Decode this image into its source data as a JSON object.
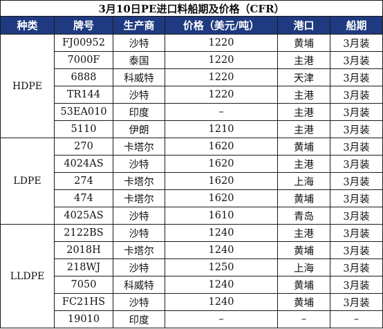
{
  "title": "3月10日PE进口料船期及价格（CFR）",
  "headers": [
    "种类",
    "牌号",
    "生产商",
    "价格（美元/吨）",
    "港口",
    "船期"
  ],
  "groups": [
    {
      "category": "HDPE",
      "rows": [
        [
          "FJ00952",
          "沙特",
          "1220",
          "黄埔",
          "3月装"
        ],
        [
          "7000F",
          "泰国",
          "1220",
          "主港",
          "3月装"
        ],
        [
          "6888",
          "科威特",
          "1220",
          "天津",
          "3月装"
        ],
        [
          "TR144",
          "沙特",
          "1220",
          "主港",
          "3月装"
        ],
        [
          "53EA010",
          "印度",
          "–",
          "主港",
          "3月装"
        ],
        [
          "5110",
          "伊朗",
          "1210",
          "主港",
          "3月装"
        ]
      ]
    },
    {
      "category": "LDPE",
      "rows": [
        [
          "270",
          "卡塔尔",
          "1620",
          "黄埔",
          "3月装"
        ],
        [
          "4024AS",
          "沙特",
          "1620",
          "主港",
          "3月装"
        ],
        [
          "274",
          "卡塔尔",
          "1620",
          "上海",
          "3月装"
        ],
        [
          "474",
          "卡塔尔",
          "1620",
          "黄埔",
          "3月装"
        ],
        [
          "4025AS",
          "沙特",
          "1610",
          "青岛",
          "3月装"
        ]
      ]
    },
    {
      "category": "LLDPE",
      "rows": [
        [
          "2122BS",
          "沙特",
          "1240",
          "主港",
          "3月装"
        ],
        [
          "2018H",
          "卡塔尔",
          "1240",
          "黄埔",
          "3月装"
        ],
        [
          "218WJ",
          "沙特",
          "1250",
          "上海",
          "3月装"
        ],
        [
          "7050",
          "科威特",
          "1240",
          "黄埔",
          "3月装"
        ],
        [
          "FC21HS",
          "沙特",
          "1240",
          "黄埔",
          "3月装"
        ],
        [
          "19010",
          "印度",
          "–",
          "–",
          "–"
        ]
      ]
    }
  ],
  "colors": {
    "header_bg": "#1f3a80",
    "header_text": "#ffffff",
    "border": "#1a1a1a"
  }
}
